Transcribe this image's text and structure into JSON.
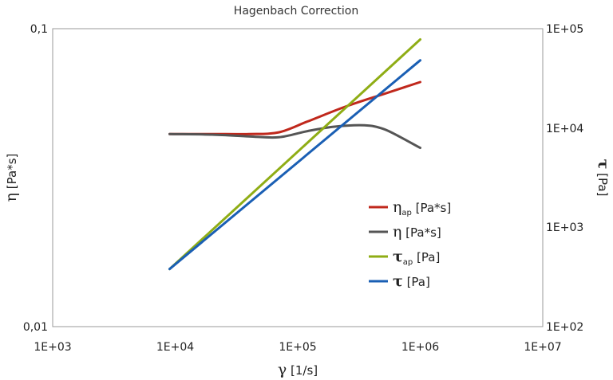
{
  "chart_data": {
    "type": "line",
    "title": "Hagenbach Correction",
    "xscale": "log",
    "yscale_left": "log",
    "yscale_right": "log",
    "xlim": [
      1000,
      10000000
    ],
    "ylim_left": [
      0.01,
      0.1
    ],
    "ylim_right": [
      100,
      100000
    ],
    "grid": false,
    "legend_position": "center-right",
    "x_ticks": [
      "1E+03",
      "1E+04",
      "1E+05",
      "1E+06",
      "1E+07"
    ],
    "y_left_ticks": [
      "0,01",
      "0,1"
    ],
    "y_right_ticks": [
      "1E+02",
      "1E+03",
      "1E+04",
      "1E+05"
    ],
    "xlabel": {
      "symbol": "γ",
      "unit": " [1/s]"
    },
    "ylabel_left": {
      "symbol": "η",
      "unit": " [Pa*s]"
    },
    "ylabel_right": {
      "symbol": "τ",
      "unit": " [Pa]"
    },
    "series": [
      {
        "name": "η_ap [Pa*s]",
        "legend_symbol": "η",
        "legend_sub": "ap",
        "legend_unit": " [Pa*s]",
        "axis": "left",
        "color": "#c0281c",
        "x": [
          9000,
          20000,
          40000,
          70000,
          120000,
          250000,
          500000,
          1000000
        ],
        "y": [
          0.0443,
          0.0443,
          0.0443,
          0.0449,
          0.0488,
          0.0549,
          0.0603,
          0.0662
        ]
      },
      {
        "name": "η [Pa*s]",
        "legend_symbol": "η",
        "legend_sub": "",
        "legend_unit": " [Pa*s]",
        "axis": "left",
        "color": "#555555",
        "x": [
          9000,
          20000,
          40000,
          70000,
          120000,
          200000,
          350000,
          500000,
          700000,
          1000000
        ],
        "y": [
          0.0443,
          0.0441,
          0.0435,
          0.0432,
          0.0453,
          0.0469,
          0.0474,
          0.0461,
          0.0431,
          0.0398
        ]
      },
      {
        "name": "τ_ap [Pa]",
        "legend_symbol": "τ",
        "legend_sub": "ap",
        "legend_unit": " [Pa]",
        "axis": "right",
        "color": "#8fad15",
        "x": [
          9000,
          1000000
        ],
        "y": [
          380,
          78000
        ]
      },
      {
        "name": "τ [Pa]",
        "legend_symbol": "τ",
        "legend_sub": "",
        "legend_unit": " [Pa]",
        "axis": "right",
        "color": "#1a5fb4",
        "x": [
          9000,
          1000000
        ],
        "y": [
          380,
          48000
        ]
      }
    ]
  }
}
